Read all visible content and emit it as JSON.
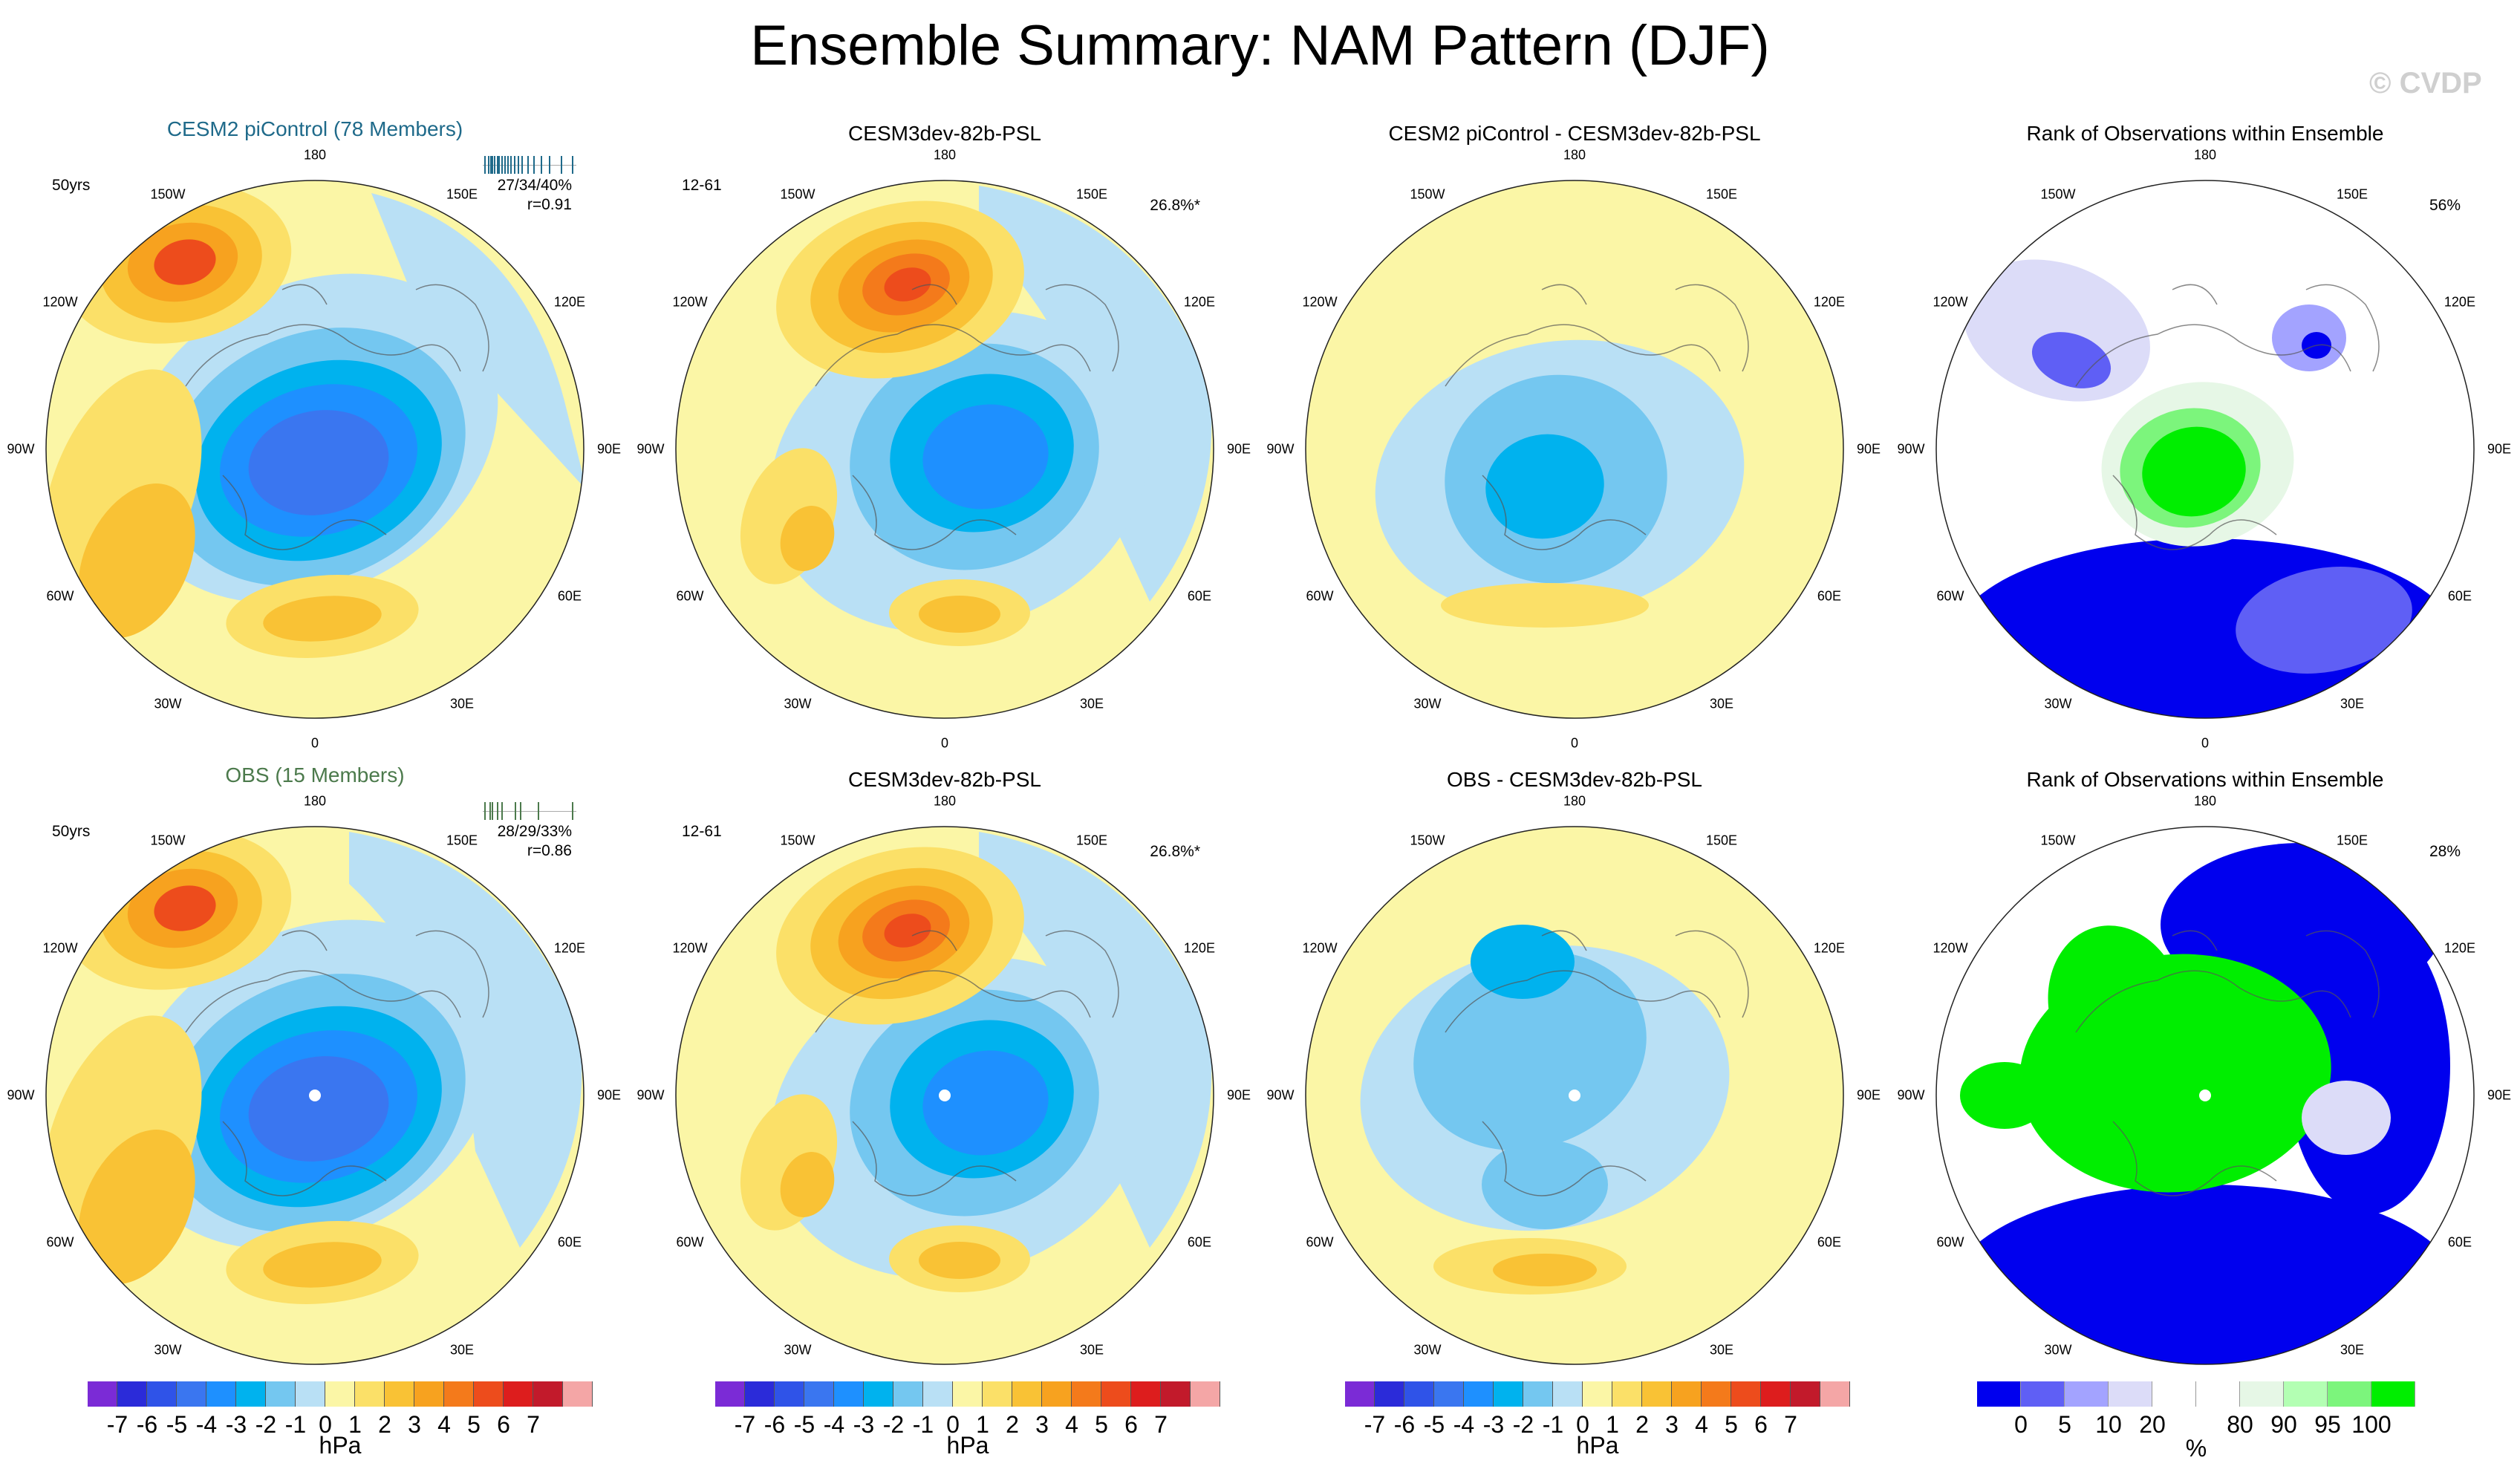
{
  "page": {
    "title": "Ensemble Summary: NAM Pattern (DJF)",
    "watermark": "© CVDP"
  },
  "colors": {
    "neg7": "#7b2bd6",
    "neg6": "#2b2bd9",
    "neg5": "#2f53e8",
    "neg4": "#3a76f0",
    "neg3": "#1e90ff",
    "neg2": "#00b2ee",
    "neg1": "#74c7f0",
    "neg0": "#b9e0f5",
    "pos0": "#fbf6a6",
    "pos1": "#fbe068",
    "pos2": "#f9c235",
    "pos3": "#f7a21f",
    "pos4": "#f47a1b",
    "pos5": "#ed4c1c",
    "pos6": "#dd1d1d",
    "pos7": "#c21a2b",
    "pos8": "#f4a6a6",
    "rank": [
      "#0000ee",
      "#5f5ff5",
      "#a3a3ff",
      "#dcdcf8",
      "#ffffff",
      "#ffffff",
      "#e6f7e6",
      "#b3ffb3",
      "#7cf57c",
      "#00ee00"
    ],
    "member_ticks_top": "#1f6a8a",
    "member_ticks_bottom": "#4c7a4c",
    "obs_title": "#4c7a4c",
    "cesm_title": "#1f6a8a"
  },
  "lon_labels": [
    "180",
    "150E",
    "120E",
    "90E",
    "60E",
    "30E",
    "0",
    "30W",
    "60W",
    "90W",
    "120W",
    "150W"
  ],
  "panels": [
    {
      "id": "p11",
      "title": "CESM2 piControl (78 Members)",
      "left_text": "50yrs",
      "right_text": "27/34/40%",
      "right_text2": "r=0.91",
      "type": "psl",
      "member_ticks": [
        0.02,
        0.06,
        0.08,
        0.1,
        0.12,
        0.15,
        0.17,
        0.2,
        0.23,
        0.27,
        0.3,
        0.34,
        0.38,
        0.42,
        0.48,
        0.55,
        0.63,
        0.72,
        0.85,
        0.97
      ]
    },
    {
      "id": "p12",
      "title": "CESM3dev-82b-PSL",
      "left_text": "12-61",
      "right_text": "26.8%*",
      "type": "psl"
    },
    {
      "id": "p13",
      "title": "CESM2 piControl - CESM3dev-82b-PSL",
      "left_text": "",
      "right_text": "",
      "type": "diff"
    },
    {
      "id": "p14",
      "title": "Rank of Observations within Ensemble",
      "left_text": "",
      "right_text": "56%",
      "type": "rank"
    },
    {
      "id": "p21",
      "title": "OBS (15 Members)",
      "left_text": "50yrs",
      "right_text": "28/29/33%",
      "right_text2": "r=0.86",
      "type": "psl",
      "member_ticks": [
        0.02,
        0.07,
        0.1,
        0.15,
        0.2,
        0.35,
        0.4,
        0.6,
        0.97
      ]
    },
    {
      "id": "p22",
      "title": "CESM3dev-82b-PSL",
      "left_text": "12-61",
      "right_text": "26.8%*",
      "type": "psl"
    },
    {
      "id": "p23",
      "title": "OBS - CESM3dev-82b-PSL",
      "left_text": "",
      "right_text": "",
      "type": "diff"
    },
    {
      "id": "p24",
      "title": "Rank of Observations within Ensemble",
      "left_text": "",
      "right_text": "28%",
      "type": "rank"
    }
  ],
  "chart_data": {
    "type": "heatmap",
    "title": "Ensemble Summary: NAM Pattern (DJF)",
    "projection": "polar stereographic, Northern Hemisphere",
    "variable": "Sea level pressure regression (NAM pattern)",
    "units": "hPa",
    "colorbar_psl": {
      "levels": [
        -7,
        -6,
        -5,
        -4,
        -3,
        -2,
        -1,
        0,
        1,
        2,
        3,
        4,
        5,
        6,
        7
      ],
      "units": "hPa"
    },
    "colorbar_rank": {
      "labels": [
        "0",
        "5",
        "10",
        "20",
        "80",
        "90",
        "95",
        "100"
      ],
      "units": "%"
    },
    "pattern_centers": [
      {
        "name": "Arctic low",
        "value": -5,
        "lon": 90,
        "lat": 75
      },
      {
        "name": "North Pacific high",
        "value": 4,
        "lon": -160,
        "lat": 45
      },
      {
        "name": "Atlantic/Europe high",
        "value": 2,
        "lon": -20,
        "lat": 40
      }
    ],
    "annotations": {
      "cesm2_variance": "27/34/40%",
      "cesm2_r": "r=0.91",
      "obs_variance": "28/29/33%",
      "obs_r": "r=0.86",
      "model_variance": "26.8%*",
      "rank_top": "56%",
      "rank_bottom": "28%"
    }
  }
}
